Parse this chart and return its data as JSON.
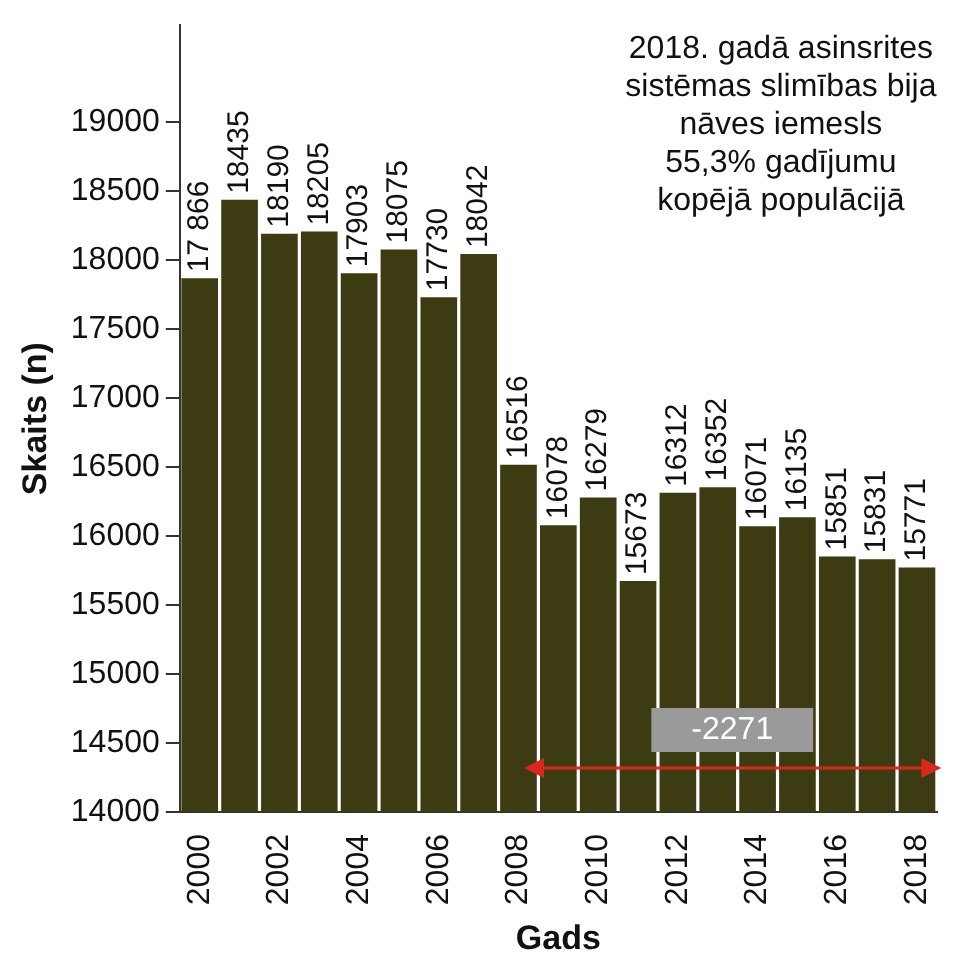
{
  "chart_data": {
    "type": "bar",
    "xlabel": "Gads",
    "ylabel": "Skaits (n)",
    "categories": [
      "2000",
      null,
      "2002",
      null,
      "2004",
      null,
      "2006",
      null,
      "2008",
      null,
      "2010",
      null,
      "2012",
      null,
      "2014",
      null,
      "2016",
      null,
      "2018"
    ],
    "values": [
      17866,
      18435,
      18190,
      18205,
      17903,
      18075,
      17730,
      18042,
      16516,
      16078,
      16279,
      15673,
      16312,
      16352,
      16071,
      16135,
      15851,
      15831,
      15771
    ],
    "value_labels": [
      "17 866",
      "18435",
      "18190",
      "18205",
      "17903",
      "18075",
      "17730",
      "18042",
      "16516",
      "16078",
      "16279",
      "15673",
      "16312",
      "16352",
      "16071",
      "16135",
      "15851",
      "15831",
      "15771"
    ],
    "color": "#3d3b12",
    "ylim": [
      14000,
      19700
    ],
    "yticks": [
      14000,
      14500,
      15000,
      15500,
      16000,
      16500,
      17000,
      17500,
      18000,
      18500,
      19000
    ],
    "grid": false,
    "legend": false,
    "annotations": [
      "2018. gadā asinsrites\nsistēmas slimības bija\nnāves iemesls\n55,3% gadījumu\nkopējā populācijā",
      "-2271"
    ]
  }
}
